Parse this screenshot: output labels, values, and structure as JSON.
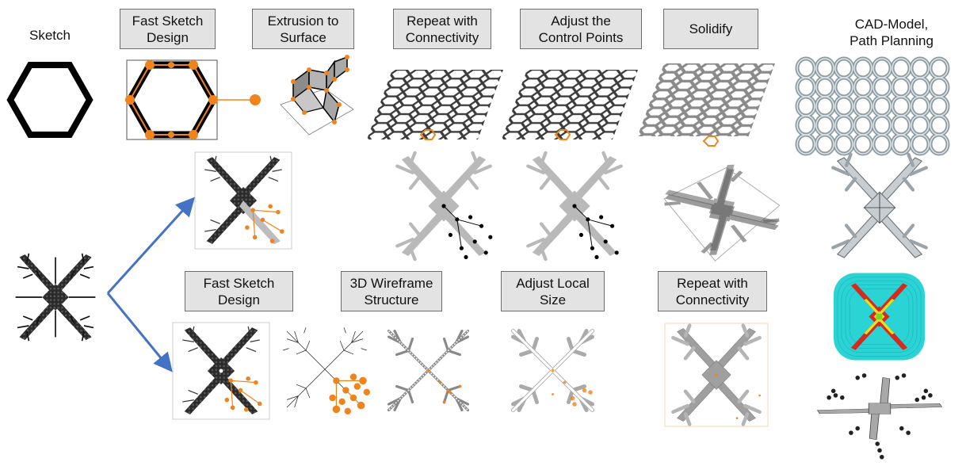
{
  "labels": {
    "sketch": "Sketch",
    "cad_line1": "CAD-Model,",
    "cad_line2": "Path Planning"
  },
  "top_steps": [
    {
      "line1": "Fast Sketch",
      "line2": "Design"
    },
    {
      "line1": "Extrusion to",
      "line2": "Surface"
    },
    {
      "line1": "Repeat with",
      "line2": "Connectivity"
    },
    {
      "line1": "Adjust the",
      "line2": "Control Points"
    },
    {
      "line1": "Solidify",
      "line2": ""
    }
  ],
  "bottom_steps": [
    {
      "line1": "Fast Sketch",
      "line2": "Design"
    },
    {
      "line1": "3D Wireframe",
      "line2": "Structure"
    },
    {
      "line1": "Adjust Local",
      "line2": "Size"
    },
    {
      "line1": "Repeat with",
      "line2": "Connectivity"
    }
  ],
  "colors": {
    "accent_orange": "#f0841c",
    "arrow_blue": "#4472c4",
    "structure_gray": "#b9b9b9",
    "box_fill": "#e3e3e3",
    "toolpath_cyan": "#2ad4d4",
    "toolpath_red": "#d62a1e",
    "toolpath_yellow": "#e6e01e"
  }
}
